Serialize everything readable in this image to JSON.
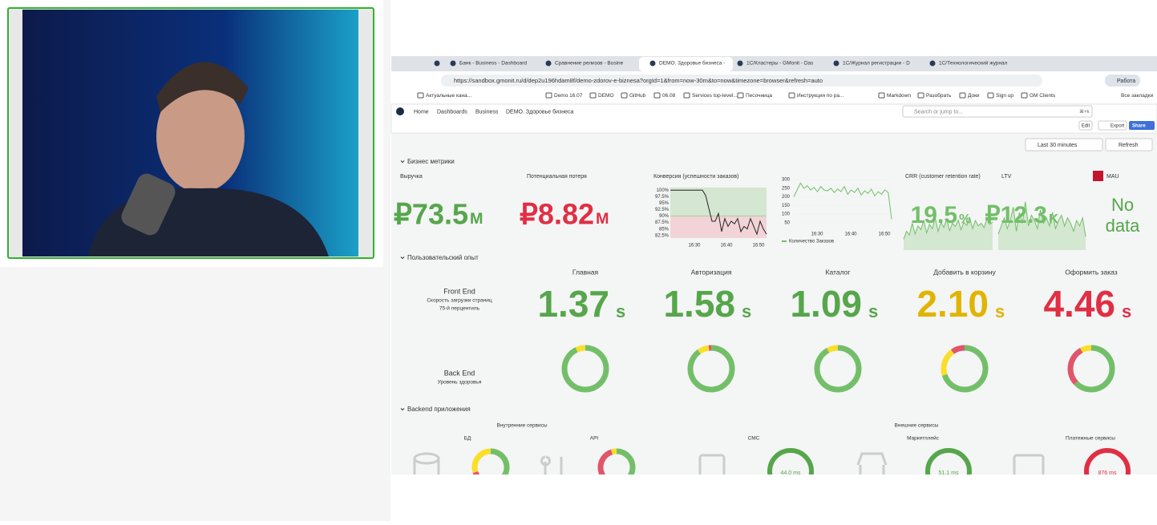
{
  "browser": {
    "tabs": [
      "Банк - Business - Dashboard",
      "Сравнение релизов - Busine",
      "DEMO. Здоровье бизнеса - ",
      "1С/Кластеры - GMonit - Das",
      "1С/Журнал регистрации - D",
      "1С/Технологический журнал"
    ],
    "url": "https://sandbox.gmonit.ru/d/dep2u196hdam8f/demo-zdorov-e-biznesa?orgId=1&from=now-30m&to=now&timezone=browser&refresh=auto",
    "profile": "Работа",
    "bookmarks": [
      "Актуальные кана...",
      "Demo 16.07",
      "DEMO",
      "GitHub",
      "06.08",
      "Services top-level...",
      "Песочница",
      "Инструкция по ра...",
      "Markdown",
      "Разобрать",
      "Доки",
      "Sign up",
      "GM Clients"
    ],
    "all_bookmarks": "Все закладки"
  },
  "breadcrumbs": [
    "Home",
    "Dashboards",
    "Business",
    "DEMO. Здоровье бизнеса"
  ],
  "search": "Search or jump to...",
  "shortcut": "⌘+k",
  "toolbar": {
    "edit": "Edit",
    "export": "Export",
    "share": "Share",
    "time_range": "Last 30 minutes",
    "refresh": "Refresh"
  },
  "sections": [
    "Бизнес метрики",
    "Пользовательский опыт",
    "Backend приложения"
  ],
  "stats": [
    {
      "title": "Выручка",
      "value": "₽73.5",
      "unit": "M",
      "color": "#56a64b"
    },
    {
      "title": "Потенциальная потеря",
      "value": "₽8.82",
      "unit": "M",
      "color": "#e02f44"
    }
  ],
  "conversion": {
    "title": "Конверсия (успешности заказов)",
    "ylim": [
      81.5,
      101
    ],
    "yticks": [
      {
        "value": 100,
        "label": "100%"
      },
      {
        "value": 97.5,
        "label": "97.5%"
      },
      {
        "value": 95,
        "label": "95%"
      },
      {
        "value": 92.5,
        "label": "92.5%"
      },
      {
        "value": 90,
        "label": "90%"
      },
      {
        "value": 87.5,
        "label": "87.5%"
      },
      {
        "value": 85,
        "label": "85%"
      },
      {
        "value": 82.5,
        "label": "82.5%"
      }
    ],
    "threshold": 90,
    "xticks": [
      "16:30",
      "16:40",
      "16:50"
    ],
    "values": [
      100,
      100,
      100,
      100,
      100,
      100,
      100,
      100,
      100,
      100,
      100,
      98,
      93,
      88,
      88,
      91,
      84,
      89,
      86,
      88,
      87,
      89,
      84,
      86,
      85,
      89,
      86,
      83,
      88,
      85,
      83
    ]
  },
  "orders": {
    "legend": "Количество Заказов",
    "color": "#73bf69",
    "ylim": [
      30,
      310
    ],
    "yticks": [
      50,
      100,
      150,
      200,
      250,
      300
    ],
    "xticks": [
      "16:30",
      "16:40",
      "16:50"
    ],
    "values": [
      200,
      240,
      280,
      250,
      265,
      240,
      255,
      230,
      260,
      240,
      235,
      250,
      225,
      245,
      230,
      260,
      215,
      240,
      225,
      250,
      210,
      235,
      220,
      245,
      205,
      230,
      215,
      240,
      225,
      70
    ]
  },
  "crr": {
    "title": "CRR (customer retention rate)",
    "value": "19.5",
    "unit": "%",
    "color": "#73bf69",
    "ylim": [
      0,
      100
    ],
    "values": [
      20,
      35,
      28,
      50,
      30,
      45,
      38,
      55,
      32,
      48,
      40,
      60,
      35,
      52,
      42,
      58,
      36,
      50,
      44,
      56,
      38,
      52,
      46,
      60,
      40,
      55,
      45,
      50,
      42,
      58,
      48,
      52
    ]
  },
  "ltv": {
    "title": "LTV",
    "value": "₽12.3",
    "unit": "K",
    "color": "#73bf69",
    "ylim": [
      0,
      100
    ],
    "values": [
      30,
      45,
      60,
      40,
      55,
      80,
      35,
      70,
      50,
      90,
      45,
      65,
      55,
      40,
      75,
      50,
      60,
      45,
      70,
      40,
      55,
      65,
      45,
      60,
      50,
      35,
      55,
      45,
      60,
      25
    ]
  },
  "mau": {
    "title": "MAU",
    "value": "No data"
  },
  "frontend": {
    "title": "Front End",
    "subtitle": "Скорость загрузки страниц",
    "note": "75-й перцентиль",
    "pages": [
      {
        "name": "Главная",
        "value": "1.37",
        "unit": "s",
        "color": "#56a64b"
      },
      {
        "name": "Авторизация",
        "value": "1.58",
        "unit": "s",
        "color": "#56a64b"
      },
      {
        "name": "Каталог",
        "value": "1.09",
        "unit": "s",
        "color": "#56a64b"
      },
      {
        "name": "Добавить в корзину",
        "value": "2.10",
        "unit": "s",
        "color": "#e0b400"
      },
      {
        "name": "Оформить заказ",
        "value": "4.46",
        "unit": "s",
        "color": "#e02f44"
      }
    ]
  },
  "backend": {
    "title": "Back End",
    "subtitle": "Уровень здоровья",
    "donuts": [
      [
        {
          "color": "#73bf69",
          "value": 93
        },
        {
          "color": "#fade2a",
          "value": 7
        }
      ],
      [
        {
          "color": "#73bf69",
          "value": 90
        },
        {
          "color": "#fade2a",
          "value": 8
        },
        {
          "color": "#e0566b",
          "value": 2
        }
      ],
      [
        {
          "color": "#73bf69",
          "value": 92
        },
        {
          "color": "#fade2a",
          "value": 8
        }
      ],
      [
        {
          "color": "#73bf69",
          "value": 70
        },
        {
          "color": "#fade2a",
          "value": 20
        },
        {
          "color": "#e0566b",
          "value": 10
        }
      ],
      [
        {
          "color": "#73bf69",
          "value": 63
        },
        {
          "color": "#e0566b",
          "value": 29
        },
        {
          "color": "#fade2a",
          "value": 8
        }
      ]
    ]
  },
  "services": {
    "internal": "Внутренние сервисы",
    "external": "Внешние сервисы",
    "items": [
      {
        "name": "БД",
        "segments": [
          {
            "color": "#73bf69",
            "value": 60
          },
          {
            "color": "#e0566b",
            "value": 10
          },
          {
            "color": "#fade2a",
            "value": 30
          }
        ]
      },
      {
        "name": "API",
        "segments": [
          {
            "color": "#73bf69",
            "value": 50
          },
          {
            "color": "#e0566b",
            "value": 45
          },
          {
            "color": "#fade2a",
            "value": 5
          }
        ]
      },
      {
        "name": "СМС",
        "label": "44.0 ms",
        "segments": [
          {
            "color": "#56a64b",
            "value": 100
          }
        ]
      },
      {
        "name": "Маркетплейс",
        "label": "51.1 ms",
        "segments": [
          {
            "color": "#56a64b",
            "value": 100
          }
        ]
      },
      {
        "name": "Платежные сервисы",
        "label": "876 ms",
        "segments": [
          {
            "color": "#e02f44",
            "value": 100
          }
        ]
      }
    ]
  }
}
